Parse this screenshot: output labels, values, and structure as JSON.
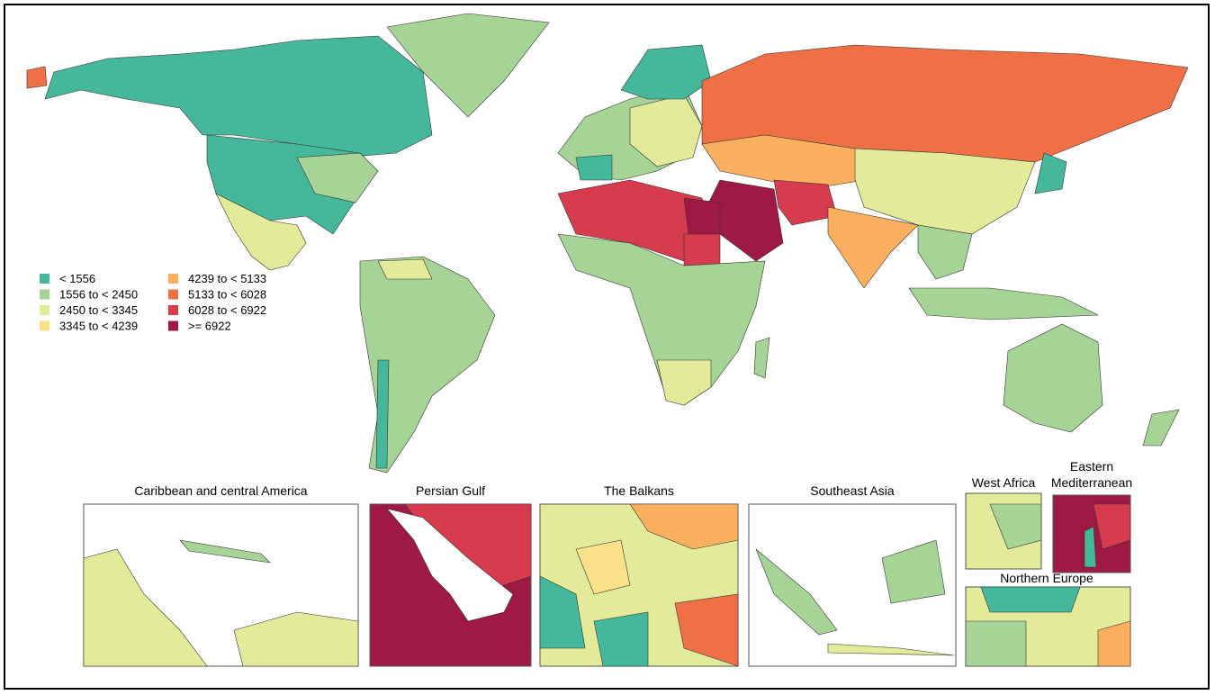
{
  "legend": {
    "items": [
      {
        "label": "< 1556",
        "color": "#45b79a"
      },
      {
        "label": "1556 to < 2450",
        "color": "#a6d396"
      },
      {
        "label": "2450 to < 3345",
        "color": "#e3eb9a"
      },
      {
        "label": "3345 to < 4239",
        "color": "#fbe08a"
      },
      {
        "label": "4239 to < 5133",
        "color": "#fbb05f"
      },
      {
        "label": "5133 to < 6028",
        "color": "#f07046"
      },
      {
        "label": "6028 to < 6922",
        "color": "#d73c4e"
      },
      {
        "label": ">= 6922",
        "color": "#9e1a45"
      }
    ]
  },
  "insets": [
    {
      "title": "Caribbean and central America"
    },
    {
      "title": "Persian Gulf"
    },
    {
      "title": "The Balkans"
    },
    {
      "title": "Southeast Asia"
    },
    {
      "title": "West Africa"
    },
    {
      "title": "Eastern Mediterranean"
    },
    {
      "title": "Northern Europe"
    }
  ]
}
